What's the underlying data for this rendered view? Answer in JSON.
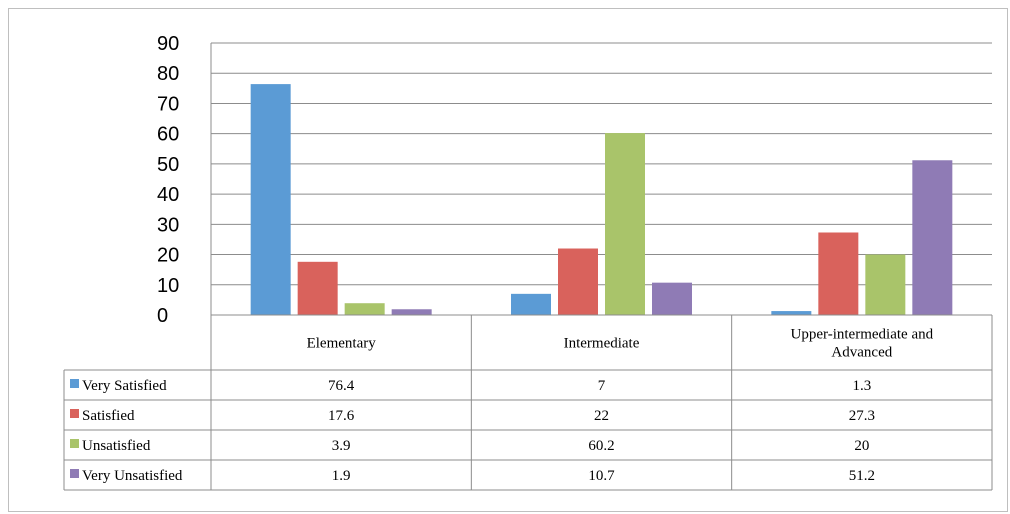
{
  "chart_data": {
    "type": "bar",
    "categories": [
      "Elementary",
      "Intermediate",
      "Upper-intermediate and Advanced"
    ],
    "category_lines": [
      [
        "Elementary"
      ],
      [
        "Intermediate"
      ],
      [
        "Upper-intermediate and",
        "Advanced"
      ]
    ],
    "series": [
      {
        "name": "Very Satisfied",
        "values": [
          76.4,
          7,
          1.3
        ],
        "labels": [
          "76.4",
          "7",
          "1.3"
        ],
        "color": "#5b9bd5"
      },
      {
        "name": "Satisfied",
        "values": [
          17.6,
          22,
          27.3
        ],
        "labels": [
          "17.6",
          "22",
          "27.3"
        ],
        "color": "#d9625c"
      },
      {
        "name": "Unsatisfied",
        "values": [
          3.9,
          60.2,
          20
        ],
        "labels": [
          "3.9",
          "60.2",
          "20"
        ],
        "color": "#a9c46a"
      },
      {
        "name": "Very Unsatisfied",
        "values": [
          1.9,
          10.7,
          51.2
        ],
        "labels": [
          "1.9",
          "10.7",
          "51.2"
        ],
        "color": "#8f7bb5"
      }
    ],
    "yticks": [
      "0",
      "10",
      "20",
      "30",
      "40",
      "50",
      "60",
      "70",
      "80",
      "90"
    ],
    "ylim": [
      0,
      90
    ],
    "grid": true,
    "legend": "data-table"
  }
}
